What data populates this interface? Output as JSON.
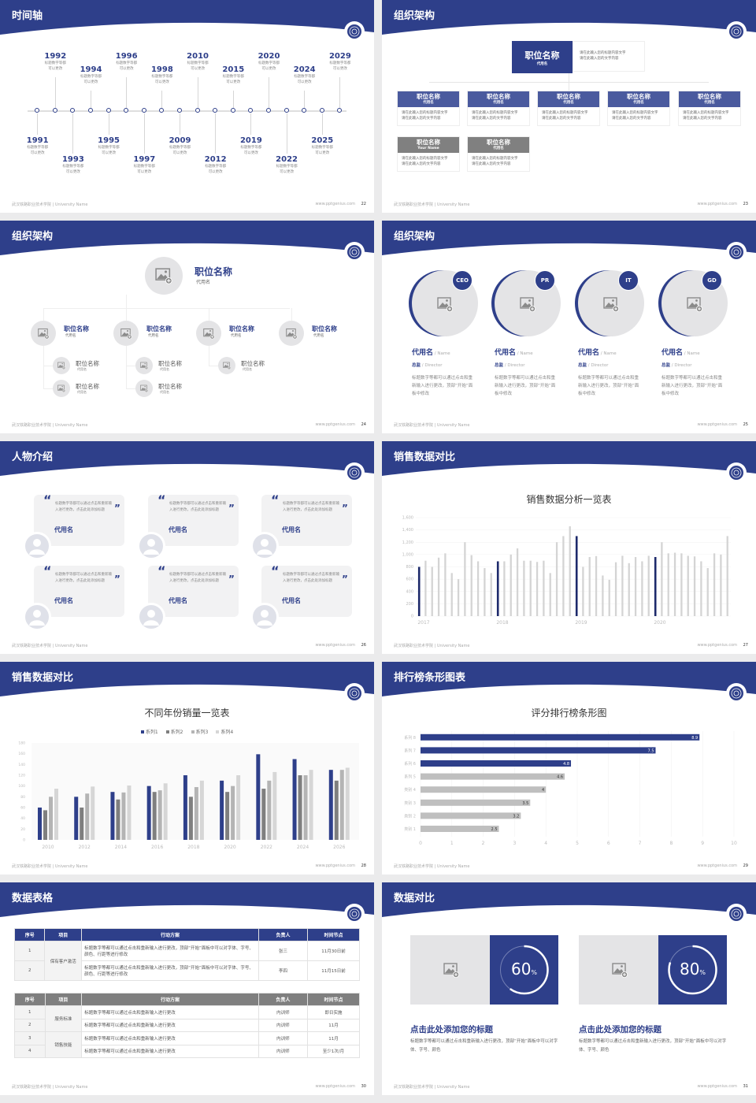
{
  "colors": {
    "primary": "#2e3f8a",
    "light_gray": "#c8c8c8",
    "mid_gray": "#8a8a8a",
    "dark_gray": "#7f7f7f",
    "placeholder": "#e4e4e6"
  },
  "footer": {
    "school": "武汉铁路职业技术学院 | University Name",
    "site": "www.pptgenius.com"
  },
  "timeline": {
    "title": "时间轴",
    "page": "22",
    "events": [
      {
        "year": "1991",
        "line1": "标题数字等都",
        "line2": "可以更改"
      },
      {
        "year": "1992",
        "line1": "标题数字等都",
        "line2": "可以更改"
      },
      {
        "year": "1993",
        "line1": "标题数字等都",
        "line2": "可以更改"
      },
      {
        "year": "1994",
        "line1": "标题数字等都",
        "line2": "可以更改"
      },
      {
        "year": "1995",
        "line1": "标题数字等都",
        "line2": "可以更改"
      },
      {
        "year": "1996",
        "line1": "标题数字等都",
        "line2": "可以更改"
      },
      {
        "year": "1997",
        "line1": "标题数字等都",
        "line2": "可以更改"
      },
      {
        "year": "1998",
        "line1": "标题数字等都",
        "line2": "可以更改"
      },
      {
        "year": "2009",
        "line1": "标题数字等都",
        "line2": "可以更改"
      },
      {
        "year": "2010",
        "line1": "标题数字等都",
        "line2": "可以更改"
      },
      {
        "year": "2012",
        "line1": "标题数字等都",
        "line2": "可以更改"
      },
      {
        "year": "2015",
        "line1": "标题数字等都",
        "line2": "可以更改"
      },
      {
        "year": "2019",
        "line1": "标题数字等都",
        "line2": "可以更改"
      },
      {
        "year": "2020",
        "line1": "标题数字等都",
        "line2": "可以更改"
      },
      {
        "year": "2022",
        "line1": "标题数字等都",
        "line2": "可以更改"
      },
      {
        "year": "2024",
        "line1": "标题数字等都",
        "line2": "可以更改"
      },
      {
        "year": "2025",
        "line1": "标题数字等都",
        "line2": "可以更改"
      },
      {
        "year": "2029",
        "line1": "标题数字等都",
        "line2": "可以更改"
      }
    ]
  },
  "org1": {
    "title": "组织架构",
    "page": "23",
    "top": {
      "title": "职位名称",
      "sub": "代用名",
      "desc1": "请在此输入您的标题内容文字",
      "desc2": "请在此输入您的文字内容"
    },
    "row1": [
      {
        "title": "职位名称",
        "sub": "代用名",
        "desc1": "请在此输入您的标题内容文字",
        "desc2": "请在此输入您的文字内容"
      },
      {
        "title": "职位名称",
        "sub": "代用名",
        "desc1": "请在此输入您的标题内容文字",
        "desc2": "请在此输入您的文字内容"
      },
      {
        "title": "职位名称",
        "sub": "代用名",
        "desc1": "请在此输入您的标题内容文字",
        "desc2": "请在此输入您的文字内容"
      },
      {
        "title": "职位名称",
        "sub": "代用名",
        "desc1": "请在此输入您的标题内容文字",
        "desc2": "请在此输入您的文字内容"
      },
      {
        "title": "职位名称",
        "sub": "代用名",
        "desc1": "请在此输入您的标题内容文字",
        "desc2": "请在此输入您的文字内容"
      }
    ],
    "row2": [
      {
        "title": "职位名称",
        "sub": "Your Name",
        "desc1": "请在此输入您的标题内容文字",
        "desc2": "请在此输入您的文字内容"
      },
      {
        "title": "职位名称",
        "sub": "代用名",
        "desc1": "请在此输入您的标题内容文字",
        "desc2": "请在此输入您的文字内容"
      }
    ]
  },
  "org2": {
    "title": "组织架构",
    "page": "24",
    "top": {
      "title": "职位名称",
      "sub": "代用名"
    },
    "level2": [
      {
        "title": "职位名称",
        "sub": "代用名",
        "children": [
          {
            "title": "职位名称",
            "sub": "代用名"
          },
          {
            "title": "职位名称",
            "sub": "代用名"
          }
        ]
      },
      {
        "title": "职位名称",
        "sub": "代用名",
        "children": [
          {
            "title": "职位名称",
            "sub": "代用名"
          },
          {
            "title": "职位名称",
            "sub": "代用名"
          }
        ]
      },
      {
        "title": "职位名称",
        "sub": "代用名",
        "children": [
          {
            "title": "职位名称",
            "sub": "代用名"
          }
        ]
      },
      {
        "title": "职位名称",
        "sub": "代用名",
        "children": []
      }
    ]
  },
  "team": {
    "title": "组织架构",
    "page": "25",
    "members": [
      {
        "badge": "CEO",
        "name": "代用名",
        "name_en": " / Name",
        "role": "总监",
        "role_en": " /  Director",
        "desc": "标题数字等都可以通过点击和重新输入进行更改，顶部“开始”面板中修改"
      },
      {
        "badge": "PR",
        "name": "代用名",
        "name_en": " / Name",
        "role": "总监",
        "role_en": " /  Director",
        "desc": "标题数字等都可以通过点击和重新输入进行更改，顶部“开始”面板中修改"
      },
      {
        "badge": "IT",
        "name": "代用名",
        "name_en": " / Name",
        "role": "总监",
        "role_en": " /  Director",
        "desc": "标题数字等都可以通过点击和重新输入进行更改，顶部“开始”面板中修改"
      },
      {
        "badge": "GD",
        "name": "代用名",
        "name_en": " / Name",
        "role": "总监",
        "role_en": " /  Director",
        "desc": "标题数字等都可以通过点击和重新输入进行更改，顶部“开始”面板中修改"
      }
    ]
  },
  "people": {
    "title": "人物介绍",
    "page": "26",
    "quote_open": "“",
    "quote_close": "”",
    "cards": [
      {
        "text": "标题数字等都可以通过点击和重新输入进行更改，点击此处添加标题",
        "name": "代用名"
      },
      {
        "text": "标题数字等都可以通过点击和重新输入进行更改，点击此处添加标题",
        "name": "代用名"
      },
      {
        "text": "标题数字等都可以通过点击和重新输入进行更改，点击此处添加标题",
        "name": "代用名"
      },
      {
        "text": "标题数字等都可以通过点击和重新输入进行更改，点击此处添加标题",
        "name": "代用名"
      },
      {
        "text": "标题数字等都可以通过点击和重新输入进行更改，点击此处添加标题",
        "name": "代用名"
      },
      {
        "text": "标题数字等都可以通过点击和重新输入进行更改，点击此处添加标题",
        "name": "代用名"
      }
    ]
  },
  "sales1": {
    "title": "销售数据对比",
    "page": "27"
  },
  "sales2": {
    "title": "销售数据对比",
    "page": "28"
  },
  "rank": {
    "title": "排行榜条形图表",
    "page": "29"
  },
  "tables": {
    "title": "数据表格",
    "page": "30",
    "headers": [
      "序号",
      "项目",
      "行动方案",
      "负责人",
      "时间节点"
    ],
    "table1": {
      "group": "保有客户激活",
      "rows": [
        {
          "no": "1",
          "plan": "标题数字等都可以通过点击和重新输入进行更改，顶部“开始”面板中可以对字体、字号、颜色、行距等进行修改",
          "owner": "张三",
          "time": "11月30日前"
        },
        {
          "no": "2",
          "plan": "标题数字等都可以通过点击和重新输入进行更改，顶部“开始”面板中可以对字体、字号、颜色、行距等进行修改",
          "owner": "李四",
          "time": "11月15日前"
        }
      ]
    },
    "table2": {
      "groups": [
        "服务标准",
        "销售技能"
      ],
      "rows": [
        {
          "no": "1",
          "plan": "标题数字等都可以通过点击和重新输入进行更改",
          "owner": "内训师",
          "time": "即日实施"
        },
        {
          "no": "2",
          "plan": "标题数字等都可以通过点击和重新输入进行更改",
          "owner": "内训师",
          "time": "11月"
        },
        {
          "no": "3",
          "plan": "标题数字等都可以通过点击和重新输入进行更改",
          "owner": "内训师",
          "time": "11月"
        },
        {
          "no": "4",
          "plan": "标题数字等都可以通过点击和重新输入进行更改",
          "owner": "内训师",
          "time": "至少1次/月"
        }
      ]
    }
  },
  "compare": {
    "title": "数据对比",
    "page": "31",
    "items": [
      {
        "value": 60,
        "value_text": "60",
        "unit": "%",
        "heading": "点击此处添加您的标题",
        "text": "标题数字等都可以通过点击和重新输入进行更改，顶部“开始”面板中可以对字体、字号、颜色"
      },
      {
        "value": 80,
        "value_text": "80",
        "unit": "%",
        "heading": "点击此处添加您的标题",
        "text": "标题数字等都可以通过点击和重新输入进行更改，顶部“开始”面板中可以对字体、字号、颜色"
      }
    ]
  },
  "chart_data": [
    {
      "type": "bar",
      "title": "销售数据分析一览表",
      "ylim": [
        0,
        1600
      ],
      "y_ticks": [
        "0",
        "200",
        "400",
        "600",
        "800",
        "1,000",
        "1,200",
        "1,400",
        "1,600"
      ],
      "x_labels": [
        "2017",
        "2018",
        "2019",
        "2020"
      ],
      "highlight_every": 12,
      "values": [
        800,
        900,
        800,
        950,
        1020,
        700,
        600,
        1200,
        990,
        890,
        780,
        700,
        890,
        890,
        1000,
        1100,
        900,
        900,
        880,
        900,
        700,
        1200,
        1300,
        1460,
        1300,
        800,
        960,
        975,
        660,
        590,
        875,
        980,
        860,
        960,
        890,
        980,
        960,
        1200,
        1020,
        1030,
        1020,
        980,
        970,
        890,
        780,
        1020,
        1000,
        1300
      ],
      "grid": true
    },
    {
      "type": "bar",
      "title": "不同年份销量一览表",
      "categories": [
        "2010",
        "2012",
        "2014",
        "2016",
        "2018",
        "2020",
        "2022",
        "2024",
        "2026"
      ],
      "ylim": [
        0,
        180
      ],
      "y_ticks": [
        "0",
        "20",
        "40",
        "60",
        "80",
        "100",
        "120",
        "140",
        "160",
        "180"
      ],
      "legend": "top",
      "series": [
        {
          "name": "系列1",
          "color": "#2e3f8a",
          "values": [
            60,
            80,
            89,
            100,
            120,
            110,
            159,
            150,
            130
          ]
        },
        {
          "name": "系列2",
          "color": "#7f7f7f",
          "values": [
            55,
            60,
            75,
            89,
            80,
            89,
            95,
            120,
            110
          ]
        },
        {
          "name": "系列3",
          "color": "#b4b4b4",
          "values": [
            80,
            86,
            88,
            92,
            98,
            100,
            110,
            120,
            130
          ]
        },
        {
          "name": "系列4",
          "color": "#d6d6d6",
          "values": [
            95,
            99,
            101,
            105,
            110,
            120,
            126,
            130,
            134
          ]
        }
      ]
    },
    {
      "type": "bar",
      "orientation": "horizontal",
      "title": "评分排行榜条形图",
      "categories": [
        "类别 1",
        "类别 2",
        "类别 3",
        "类别 4",
        "系列 5",
        "系列 6",
        "系列 7",
        "系列 8"
      ],
      "values": [
        2.5,
        3.2,
        3.5,
        4,
        4.6,
        4.8,
        7.5,
        8.9
      ],
      "highlighted": [
        "系列 6",
        "系列 7",
        "系列 8"
      ],
      "xlim": [
        0,
        10
      ],
      "x_ticks": [
        "0",
        "1",
        "2",
        "3",
        "4",
        "5",
        "6",
        "7",
        "8",
        "9",
        "10"
      ]
    }
  ]
}
